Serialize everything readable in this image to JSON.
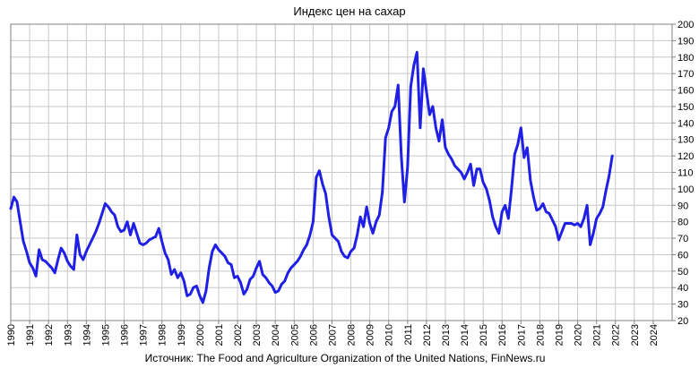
{
  "chart_data": {
    "type": "line",
    "title": "Индекс цен на сахар",
    "source": "Источник: The Food and Agriculture Organization of the United Nations, FinNews.ru",
    "xlabel": "",
    "ylabel": "",
    "xlim": [
      "1990-01",
      "2024-12"
    ],
    "ylim": [
      20,
      200
    ],
    "y_ticks": [
      20,
      30,
      40,
      50,
      60,
      70,
      80,
      90,
      100,
      110,
      120,
      130,
      140,
      150,
      160,
      170,
      180,
      190,
      200
    ],
    "x_ticks": [
      "1990",
      "1991",
      "1992",
      "1993",
      "1994",
      "1995",
      "1996",
      "1997",
      "1998",
      "1999",
      "2000",
      "2001",
      "2002",
      "2003",
      "2004",
      "2005",
      "2006",
      "2007",
      "2008",
      "2009",
      "2010",
      "2011",
      "2012",
      "2013",
      "2014",
      "2015",
      "2016",
      "2017",
      "2018",
      "2019",
      "2020",
      "2021",
      "2022",
      "2023",
      "2024"
    ],
    "grid": true,
    "y_axis_position": "right",
    "legend": "none",
    "colors": {
      "line": "#1f1fe6",
      "grid": "#c8c8c8",
      "axis": "#808080"
    },
    "series": [
      {
        "x": [
          "1990-01",
          "1990-03",
          "1990-05",
          "1990-07",
          "1990-09",
          "1990-11",
          "1991-01",
          "1991-03",
          "1991-05",
          "1991-07",
          "1991-09",
          "1991-11",
          "1992-01",
          "1992-03",
          "1992-05",
          "1992-07",
          "1992-09",
          "1992-11",
          "1993-01",
          "1993-03",
          "1993-05",
          "1993-07",
          "1993-09",
          "1993-11",
          "1994-01",
          "1994-03",
          "1994-05",
          "1994-07",
          "1994-09",
          "1994-11",
          "1995-01",
          "1995-03",
          "1995-05",
          "1995-07",
          "1995-09",
          "1995-11",
          "1996-01",
          "1996-03",
          "1996-05",
          "1996-07",
          "1996-09",
          "1996-11",
          "1997-01",
          "1997-03",
          "1997-05",
          "1997-07",
          "1997-09",
          "1997-11",
          "1998-01",
          "1998-03",
          "1998-05",
          "1998-07",
          "1998-09",
          "1998-11",
          "1999-01",
          "1999-03",
          "1999-05",
          "1999-07",
          "1999-09",
          "1999-11",
          "2000-01",
          "2000-03",
          "2000-05",
          "2000-07",
          "2000-09",
          "2000-11",
          "2001-01",
          "2001-03",
          "2001-05",
          "2001-07",
          "2001-09",
          "2001-11",
          "2002-01",
          "2002-03",
          "2002-05",
          "2002-07",
          "2002-09",
          "2002-11",
          "2003-01",
          "2003-03",
          "2003-05",
          "2003-07",
          "2003-09",
          "2003-11",
          "2004-01",
          "2004-03",
          "2004-05",
          "2004-07",
          "2004-09",
          "2004-11",
          "2005-01",
          "2005-03",
          "2005-05",
          "2005-07",
          "2005-09",
          "2005-11",
          "2006-01",
          "2006-03",
          "2006-05",
          "2006-07",
          "2006-09",
          "2006-11",
          "2007-01",
          "2007-03",
          "2007-05",
          "2007-07",
          "2007-09",
          "2007-11",
          "2008-01",
          "2008-03",
          "2008-05",
          "2008-07",
          "2008-09",
          "2008-11",
          "2009-01",
          "2009-03",
          "2009-05",
          "2009-07",
          "2009-09",
          "2009-11",
          "2010-01",
          "2010-03",
          "2010-05",
          "2010-07",
          "2010-09",
          "2010-11",
          "2011-01",
          "2011-03",
          "2011-05",
          "2011-07",
          "2011-09",
          "2011-11",
          "2012-01",
          "2012-03",
          "2012-05",
          "2012-07",
          "2012-09",
          "2012-11",
          "2013-01",
          "2013-03",
          "2013-05",
          "2013-07",
          "2013-09",
          "2013-11",
          "2014-01",
          "2014-03",
          "2014-05",
          "2014-07",
          "2014-09",
          "2014-11",
          "2015-01",
          "2015-03",
          "2015-05",
          "2015-07",
          "2015-09",
          "2015-11",
          "2016-01",
          "2016-03",
          "2016-05",
          "2016-07",
          "2016-09",
          "2016-11",
          "2017-01",
          "2017-03",
          "2017-05",
          "2017-07",
          "2017-09",
          "2017-11",
          "2018-01",
          "2018-03",
          "2018-05",
          "2018-07",
          "2018-09",
          "2018-11",
          "2019-01",
          "2019-03",
          "2019-05",
          "2019-07",
          "2019-09",
          "2019-11",
          "2020-01",
          "2020-03",
          "2020-05",
          "2020-07",
          "2020-09",
          "2020-11",
          "2021-01",
          "2021-03",
          "2021-05",
          "2021-07",
          "2021-09",
          "2021-11"
        ],
        "values": [
          88,
          95,
          92,
          80,
          68,
          62,
          55,
          52,
          47,
          63,
          57,
          56,
          54,
          52,
          49,
          57,
          64,
          61,
          56,
          53,
          51,
          72,
          60,
          57,
          62,
          66,
          70,
          74,
          79,
          85,
          91,
          89,
          86,
          84,
          77,
          74,
          75,
          80,
          72,
          79,
          73,
          67,
          66,
          67,
          69,
          70,
          71,
          76,
          68,
          61,
          57,
          48,
          51,
          46,
          49,
          44,
          35,
          36,
          40,
          41,
          35,
          31,
          38,
          52,
          62,
          66,
          63,
          61,
          59,
          55,
          54,
          46,
          47,
          43,
          36,
          39,
          45,
          47,
          52,
          56,
          48,
          46,
          43,
          41,
          37,
          38,
          42,
          44,
          49,
          52,
          54,
          56,
          59,
          63,
          66,
          72,
          80,
          107,
          111,
          103,
          97,
          83,
          72,
          70,
          68,
          62,
          59,
          58,
          62,
          64,
          72,
          83,
          77,
          89,
          79,
          73,
          80,
          84,
          98,
          131,
          137,
          147,
          150,
          163,
          120,
          92,
          113,
          162,
          175,
          183,
          137,
          173,
          159,
          145,
          150,
          137,
          129,
          142,
          125,
          121,
          118,
          114,
          112,
          110,
          106,
          110,
          115,
          102,
          112,
          112,
          104,
          100,
          93,
          83,
          77,
          73,
          86,
          90,
          82,
          100,
          121,
          127,
          137,
          119,
          125,
          105,
          95,
          87,
          88,
          91,
          86,
          85,
          81,
          77,
          69,
          74,
          79,
          79,
          79,
          78,
          79,
          77,
          82,
          90,
          66,
          73,
          82,
          85,
          89,
          99,
          108,
          120
        ]
      }
    ]
  }
}
